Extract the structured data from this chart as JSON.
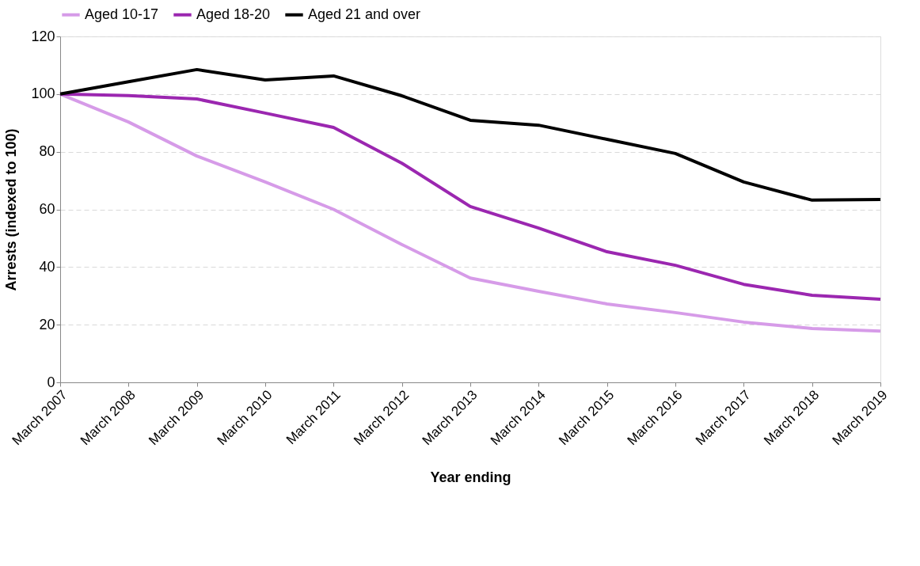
{
  "chart_data": {
    "type": "line",
    "xlabel": "Year ending",
    "ylabel": "Arrests (indexed to 100)",
    "categories": [
      "March 2007",
      "March 2008",
      "March 2009",
      "March 2010",
      "March 2011",
      "March 2012",
      "March 2013",
      "March 2014",
      "March 2015",
      "March 2016",
      "March 2017",
      "March 2018",
      "March 2019"
    ],
    "series": [
      {
        "name": "Aged 10-17",
        "color": "#d69be8",
        "values": [
          100,
          90.3,
          78.5,
          69.5,
          60,
          47.8,
          36.2,
          31.6,
          27.2,
          24.2,
          20.9,
          18.7,
          17.8
        ]
      },
      {
        "name": "Aged 18-20",
        "color": "#9b27b0",
        "values": [
          100,
          99.5,
          98.3,
          93.4,
          88.4,
          76,
          61,
          53.5,
          45.3,
          40.6,
          34,
          30.2,
          28.8
        ]
      },
      {
        "name": "Aged 21 and over",
        "color": "#000000",
        "values": [
          100,
          104.3,
          108.5,
          104.9,
          106.3,
          99.4,
          90.9,
          89.2,
          84.3,
          79.4,
          69.5,
          63.2,
          63.4
        ]
      }
    ],
    "ylim": [
      0,
      120
    ],
    "yticks": [
      0,
      20,
      40,
      60,
      80,
      100,
      120
    ],
    "grid": "y",
    "legend": "top",
    "marker": "none",
    "line_style": "solid"
  }
}
